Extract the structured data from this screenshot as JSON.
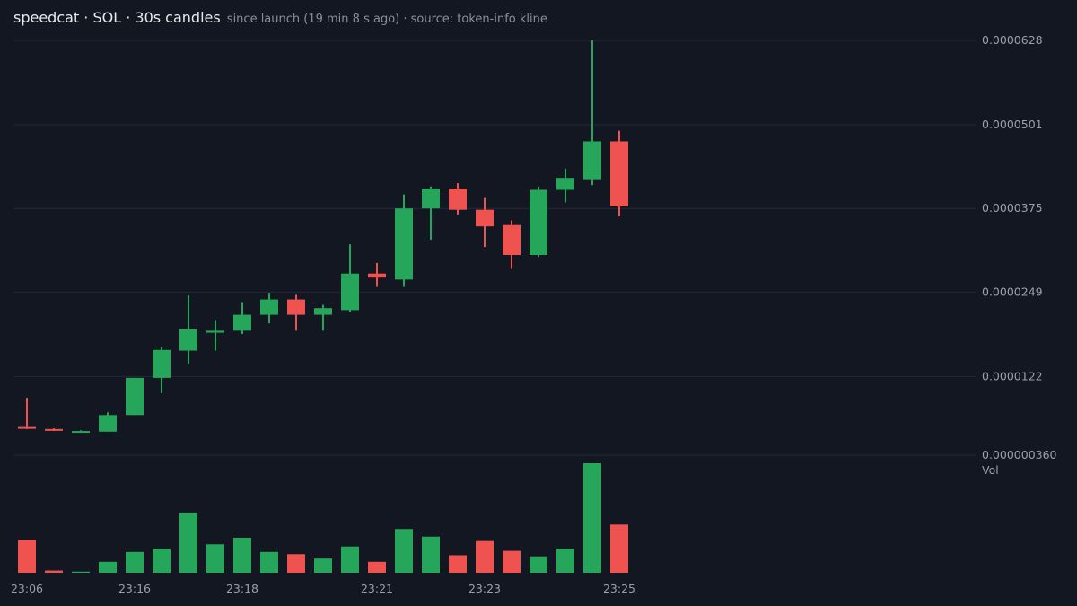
{
  "header": {
    "title": "speedcat · SOL · 30s candles",
    "subtitle": "since launch (19 min 8 s ago) · source: token-info kline"
  },
  "colors": {
    "background": "#131722",
    "up": "#26a65b",
    "down": "#ef5350",
    "grid": "#232836",
    "text": "#9aa0a8"
  },
  "chart_data": {
    "type": "candlestick",
    "price_axis": {
      "ticks": [
        "0.0000628",
        "0.0000501",
        "0.0000375",
        "0.0000249",
        "0.0000122",
        "0.000000360"
      ],
      "tick_values": [
        6.28e-05,
        5.01e-05,
        3.75e-05,
        2.49e-05,
        1.22e-05,
        3.6e-07
      ],
      "range": [
        3.6e-07,
        6.28e-05
      ],
      "scale": "linear"
    },
    "volume_axis": {
      "label": "Vol"
    },
    "time_axis": {
      "ticks": [
        "23:06",
        "23:16",
        "23:18",
        "23:21",
        "23:23",
        "23:25"
      ],
      "tick_candle_index": [
        0,
        4,
        8,
        13,
        17,
        22
      ]
    },
    "grid": true,
    "candles": [
      {
        "o": 4.6e-06,
        "h": 9e-06,
        "l": 4.3e-06,
        "c": 4.4e-06,
        "v": 0.3
      },
      {
        "o": 4.3e-06,
        "h": 4.4e-06,
        "l": 4e-06,
        "c": 4.1e-06,
        "v": 0.02
      },
      {
        "o": 4e-06,
        "h": 4.1e-06,
        "l": 3.9e-06,
        "c": 4e-06,
        "v": 0.01
      },
      {
        "o": 3.9e-06,
        "h": 6.8e-06,
        "l": 3.9e-06,
        "c": 6.4e-06,
        "v": 0.1
      },
      {
        "o": 6.4e-06,
        "h": 1.2e-05,
        "l": 6.4e-06,
        "c": 1.2e-05,
        "v": 0.19
      },
      {
        "o": 1.2e-05,
        "h": 1.66e-05,
        "l": 9.7e-06,
        "c": 1.62e-05,
        "v": 0.22
      },
      {
        "o": 1.61e-05,
        "h": 2.44e-05,
        "l": 1.41e-05,
        "c": 1.93e-05,
        "v": 0.55
      },
      {
        "o": 1.88e-05,
        "h": 2.07e-05,
        "l": 1.61e-05,
        "c": 1.91e-05,
        "v": 0.26
      },
      {
        "o": 1.91e-05,
        "h": 2.34e-05,
        "l": 1.86e-05,
        "c": 2.15e-05,
        "v": 0.32
      },
      {
        "o": 2.15e-05,
        "h": 2.48e-05,
        "l": 2.02e-05,
        "c": 2.38e-05,
        "v": 0.19
      },
      {
        "o": 2.38e-05,
        "h": 2.45e-05,
        "l": 1.91e-05,
        "c": 2.15e-05,
        "v": 0.17
      },
      {
        "o": 2.15e-05,
        "h": 2.3e-05,
        "l": 1.91e-05,
        "c": 2.25e-05,
        "v": 0.13
      },
      {
        "o": 2.22e-05,
        "h": 3.21e-05,
        "l": 2.19e-05,
        "c": 2.77e-05,
        "v": 0.24
      },
      {
        "o": 2.77e-05,
        "h": 2.93e-05,
        "l": 2.57e-05,
        "c": 2.71e-05,
        "v": 0.1
      },
      {
        "o": 2.68e-05,
        "h": 3.96e-05,
        "l": 2.57e-05,
        "c": 3.75e-05,
        "v": 0.4
      },
      {
        "o": 3.75e-05,
        "h": 4.08e-05,
        "l": 3.28e-05,
        "c": 4.05e-05,
        "v": 0.33
      },
      {
        "o": 4.05e-05,
        "h": 4.13e-05,
        "l": 3.66e-05,
        "c": 3.73e-05,
        "v": 0.16
      },
      {
        "o": 3.73e-05,
        "h": 3.92e-05,
        "l": 3.17e-05,
        "c": 3.48e-05,
        "v": 0.29
      },
      {
        "o": 3.5e-05,
        "h": 3.57e-05,
        "l": 2.84e-05,
        "c": 3.05e-05,
        "v": 0.2
      },
      {
        "o": 3.05e-05,
        "h": 4.08e-05,
        "l": 3.02e-05,
        "c": 4.03e-05,
        "v": 0.15
      },
      {
        "o": 4.03e-05,
        "h": 4.35e-05,
        "l": 3.84e-05,
        "c": 4.21e-05,
        "v": 0.22
      },
      {
        "o": 4.19e-05,
        "h": 6.28e-05,
        "l": 4.1e-05,
        "c": 4.76e-05,
        "v": 1.0
      },
      {
        "o": 4.76e-05,
        "h": 4.92e-05,
        "l": 3.63e-05,
        "c": 3.78e-05,
        "v": 0.44
      }
    ]
  }
}
